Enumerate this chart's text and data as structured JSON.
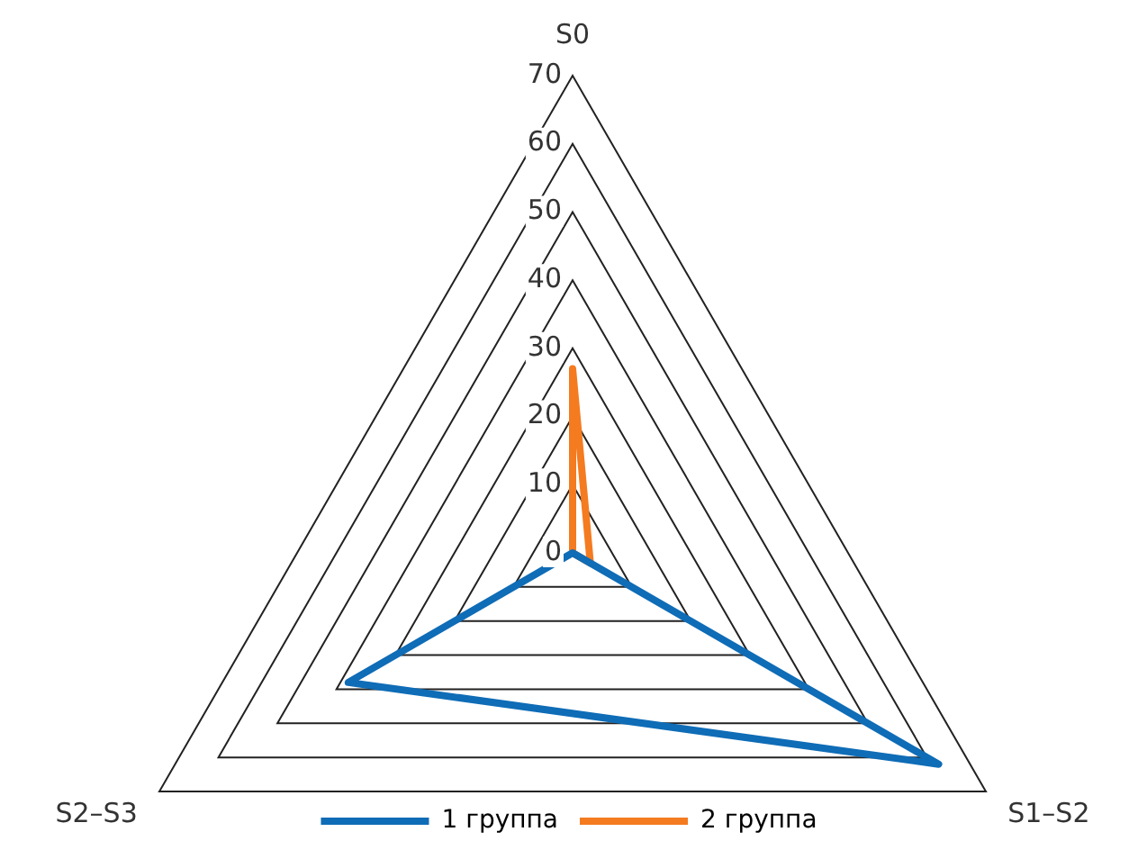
{
  "chart_data": {
    "type": "radar",
    "categories": [
      "S0",
      "S1–S2",
      "S2–S3"
    ],
    "series": [
      {
        "name": "1 группа",
        "color": "#0f6cb6",
        "values": [
          0,
          62,
          38
        ]
      },
      {
        "name": "2 группа",
        "color": "#f47b20",
        "values": [
          27,
          3,
          0
        ]
      }
    ],
    "ylim": [
      0,
      70
    ],
    "yticks": [
      0,
      10,
      20,
      30,
      40,
      50,
      60,
      70
    ],
    "legend": "bottom",
    "marker": "none",
    "grid": true
  }
}
